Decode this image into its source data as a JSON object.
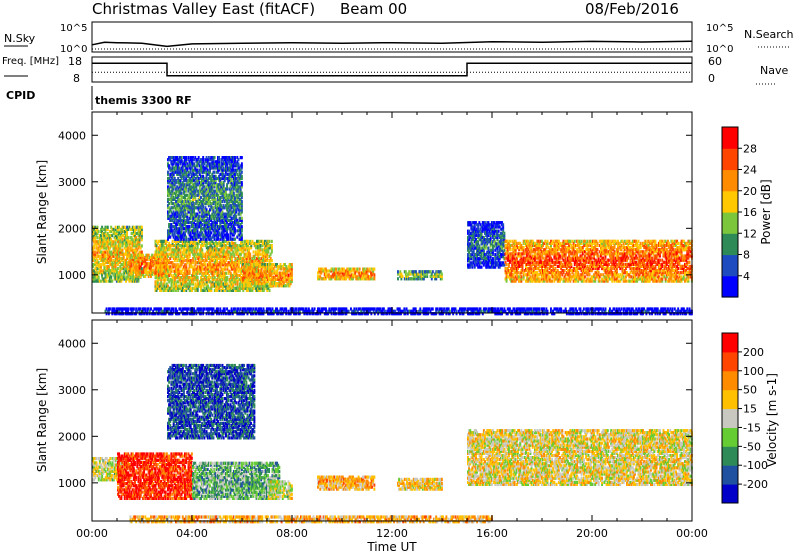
{
  "header": {
    "title": "Christmas Valley East (fitACF)",
    "beam": "Beam 00",
    "date": "08/Feb/2016",
    "mode": "themis 3300 RF"
  },
  "chart_data": [
    {
      "type": "line",
      "title": "",
      "ylabel_left": "N.Sky",
      "ylabel_right": "N.Search",
      "left_ticks": [
        "10^5",
        "10^0"
      ],
      "right_ticks": [
        "10^5",
        "10^0"
      ],
      "y_scale": "log",
      "series": [
        {
          "name": "N.Sky",
          "style": "solid",
          "x": [
            0,
            0.5,
            1,
            2,
            3,
            4,
            6,
            8,
            10,
            12,
            14,
            16,
            18,
            20,
            22,
            24
          ],
          "values": [
            10,
            30,
            25,
            20,
            5,
            15,
            20,
            25,
            20,
            25,
            20,
            40,
            30,
            45,
            35,
            50
          ]
        },
        {
          "name": "N.Search",
          "style": "dotted",
          "x": [
            0,
            24
          ],
          "values": [
            1,
            1
          ]
        }
      ]
    },
    {
      "type": "line",
      "ylabel_left": "Freq. [MHz]",
      "ylabel_right": "Nave",
      "left_ticks": [
        "18",
        "8"
      ],
      "right_ticks": [
        "60",
        "0"
      ],
      "series": [
        {
          "name": "Freq",
          "style": "solid",
          "x": [
            0,
            3,
            3,
            15,
            15,
            24
          ],
          "values": [
            16,
            16,
            10,
            10,
            16,
            16
          ]
        },
        {
          "name": "Nave",
          "style": "dotted",
          "x": [
            0,
            24
          ],
          "values": [
            22,
            22
          ]
        }
      ]
    },
    {
      "type": "heatmap",
      "quantity": "Power [dB]",
      "ylabel": "Slant Range [km]",
      "xlim": [
        0,
        24
      ],
      "ylim": [
        180,
        4500
      ],
      "yticks": [
        "1000",
        "2000",
        "3000",
        "4000"
      ],
      "colorbar": {
        "label": "Power [dB]",
        "ticks": [
          "4",
          "8",
          "12",
          "16",
          "20",
          "24",
          "28"
        ],
        "colors": [
          "#0000ff",
          "#1e4bbf",
          "#2e8b57",
          "#7cc63c",
          "#ffc800",
          "#ff8c00",
          "#ff4500",
          "#ff0000"
        ]
      },
      "regions": [
        {
          "t0": 0.0,
          "t1": 2.0,
          "r0": 900,
          "r1": 2100,
          "level": 0.65
        },
        {
          "t0": 1.5,
          "t1": 3.0,
          "r0": 1000,
          "r1": 1500,
          "level": 0.8
        },
        {
          "t0": 2.5,
          "t1": 7.2,
          "r0": 700,
          "r1": 1800,
          "level": 0.7
        },
        {
          "t0": 3.0,
          "t1": 6.0,
          "r0": 1800,
          "r1": 3600,
          "level": 0.35
        },
        {
          "t0": 6.0,
          "t1": 8.0,
          "r0": 800,
          "r1": 1300,
          "level": 0.75
        },
        {
          "t0": 9.0,
          "t1": 11.3,
          "r0": 950,
          "r1": 1200,
          "level": 0.8
        },
        {
          "t0": 12.2,
          "t1": 14.0,
          "r0": 950,
          "r1": 1150,
          "level": 0.55
        },
        {
          "t0": 15.0,
          "t1": 16.5,
          "r0": 1200,
          "r1": 2200,
          "level": 0.3
        },
        {
          "t0": 16.5,
          "t1": 24.0,
          "r0": 900,
          "r1": 1800,
          "level": 0.85
        },
        {
          "t0": 0.5,
          "t1": 24.0,
          "r0": 200,
          "r1": 350,
          "level": 0.2
        }
      ]
    },
    {
      "type": "heatmap",
      "quantity": "Velocity [m s^-1]",
      "ylabel": "Slant Range [km]",
      "xlim": [
        0,
        24
      ],
      "ylim": [
        180,
        4500
      ],
      "xlabel": "Time UT",
      "xticks": [
        "00:00",
        "04:00",
        "08:00",
        "12:00",
        "16:00",
        "20:00",
        "00:00"
      ],
      "yticks": [
        "1000",
        "2000",
        "3000",
        "4000"
      ],
      "colorbar": {
        "label": "Velocity [m s-1]",
        "ticks": [
          "200",
          "100",
          "50",
          "15",
          "-15",
          "-50",
          "-100",
          "-200"
        ],
        "colors": [
          "#0000c8",
          "#2050a0",
          "#2e8b57",
          "#66cc33",
          "#c8c8c0",
          "#ffc000",
          "#ff8c00",
          "#ff4500",
          "#ff0000"
        ]
      },
      "regions": [
        {
          "t0": 0.0,
          "t1": 1.2,
          "r0": 1100,
          "r1": 1600,
          "level": 0.5
        },
        {
          "t0": 1.0,
          "t1": 4.0,
          "r0": 700,
          "r1": 1700,
          "level": 0.9
        },
        {
          "t0": 3.0,
          "t1": 6.5,
          "r0": 2000,
          "r1": 3600,
          "level": 0.15
        },
        {
          "t0": 4.0,
          "t1": 7.5,
          "r0": 700,
          "r1": 1500,
          "level": 0.35
        },
        {
          "t0": 7.0,
          "t1": 8.0,
          "r0": 700,
          "r1": 1100,
          "level": 0.5
        },
        {
          "t0": 9.0,
          "t1": 11.3,
          "r0": 900,
          "r1": 1200,
          "level": 0.65
        },
        {
          "t0": 12.2,
          "t1": 14.0,
          "r0": 900,
          "r1": 1150,
          "level": 0.6
        },
        {
          "t0": 15.0,
          "t1": 24.0,
          "r0": 1000,
          "r1": 2200,
          "level": 0.55
        },
        {
          "t0": 1.5,
          "t1": 16.0,
          "r0": 200,
          "r1": 350,
          "level": 0.65
        }
      ]
    }
  ]
}
